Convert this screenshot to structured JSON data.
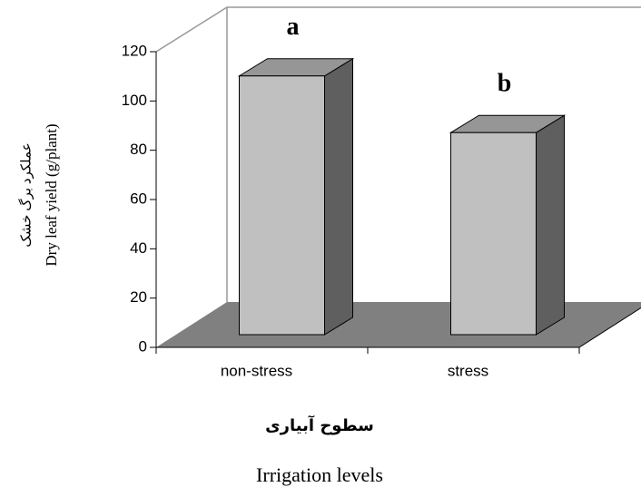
{
  "chart_data": {
    "type": "bar3d",
    "y_axis_labels": [
      "عملکرد برگ خشک",
      "Dry leaf yield (g/plant)"
    ],
    "x_axis_labels": [
      "سطوح آبیاری",
      "Irrigation levels"
    ],
    "categories": [
      "non-stress",
      "stress"
    ],
    "values": [
      105,
      82
    ],
    "annotations": [
      "a",
      "b"
    ],
    "color": "#c0c0c0",
    "ylim": [
      0,
      120
    ],
    "yticks": [
      0,
      20,
      40,
      60,
      80,
      100,
      120
    ],
    "grid": false
  }
}
